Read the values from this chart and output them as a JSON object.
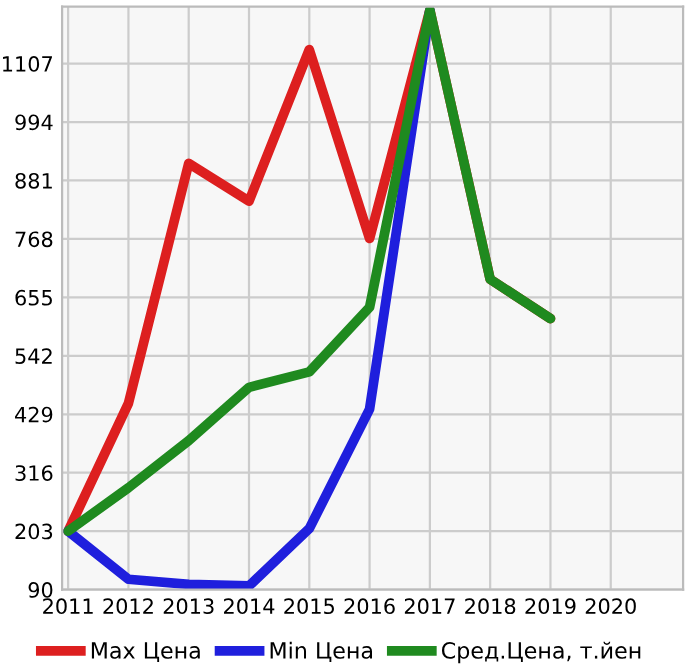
{
  "chart_data": {
    "type": "line",
    "x": [
      2011,
      2012,
      2013,
      2014,
      2015,
      2016,
      2017,
      2018,
      2019
    ],
    "series": [
      {
        "name": "Max Цена",
        "color": "#dd1f1f",
        "values": [
          203,
          450,
          914,
          841,
          1134,
          769,
          1210,
          690,
          614
        ]
      },
      {
        "name": "Min Цена",
        "color": "#1f1fdd",
        "values": [
          203,
          110,
          100,
          97,
          208,
          439,
          1210,
          null,
          null
        ]
      },
      {
        "name": "Сред.Цена, т.йен",
        "color": "#1f8a1f",
        "values": [
          203,
          287,
          378,
          481,
          511,
          636,
          1210,
          690,
          614
        ]
      }
    ],
    "xlim": [
      2010.9,
      2021.2
    ],
    "ylim": [
      90,
      1217
    ],
    "xticks": [
      2011,
      2012,
      2013,
      2014,
      2015,
      2016,
      2017,
      2018,
      2019,
      2020
    ],
    "yticks": [
      90,
      203,
      316,
      429,
      542,
      655,
      768,
      881,
      994,
      1107
    ],
    "grid": true,
    "legend": "bottom",
    "marker": "none",
    "line_style": "solid"
  }
}
